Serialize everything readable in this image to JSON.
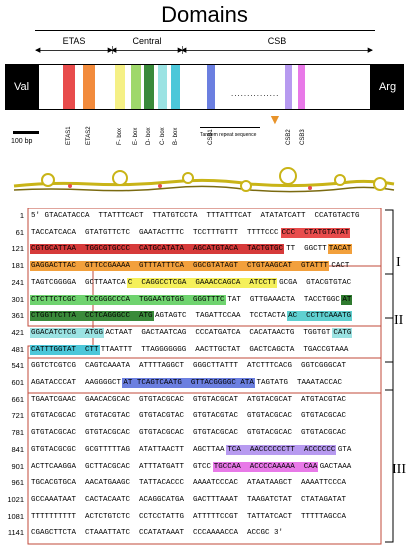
{
  "title": "Domains",
  "domains": {
    "etas": "ETAS",
    "central": "Central",
    "csb": "CSB"
  },
  "bar": {
    "left_label": "Val",
    "right_label": "Arg",
    "dots": "...............",
    "band_labels": [
      "ETAS1",
      "ETAS2",
      "F- box",
      "E- box",
      "D- box",
      "C- box",
      "B- box",
      "CSB1",
      "CSB2",
      "CSB3"
    ],
    "tandem": "Tandem repeat sequence",
    "colors": {
      "etas1": "#e84c4c",
      "etas2": "#f28b3c",
      "f": "#f5f086",
      "e": "#9fd86b",
      "d": "#3a8a3a",
      "c": "#9be3e3",
      "b": "#4cc7d9",
      "csb1": "#6b7fe0",
      "csb2": "#b79af0",
      "csb3": "#e879e8"
    }
  },
  "scale": "100 bp",
  "region_labels": [
    "I",
    "II",
    "III"
  ],
  "seq_rows": [
    {
      "n": "1",
      "segs": [
        {
          "t": "5' GTACATACCA  TTATTTCACT  TTATGTCCTA  TTTATTTCAT  ATATATCATT  CCATGTACTG",
          "c": ""
        }
      ]
    },
    {
      "n": "61",
      "segs": [
        {
          "t": "TACCATCACA  GTATGTTCTC  GAATACTTTC  TCCTTTGTTT  TTTTCCC",
          "c": ""
        },
        {
          "t": "CCC  CTATGTATAT",
          "c": "#e84c4c"
        }
      ]
    },
    {
      "n": "121",
      "segs": [
        {
          "t": "CGTGCATTAA  TGGCGTGCCC  CATGCATATA  AGCATGTACA  TACTGTGC",
          "c": "#d63a3a"
        },
        {
          "t": "TT  GGCTT",
          "c": ""
        },
        {
          "t": "TACAT",
          "c": "#f2a03c"
        }
      ]
    },
    {
      "n": "181",
      "segs": [
        {
          "t": "GAGGACTTAC  GTTCCGAAAA  GTTTATTTCA  GGCGTATAGT  CTGTAAGCAT  GTATTT",
          "c": "#f2a03c"
        },
        {
          "t": "CACT",
          "c": ""
        }
      ]
    },
    {
      "n": "241",
      "segs": [
        {
          "t": "TAGTCGGGGA  GCTTAATCA",
          "c": ""
        },
        {
          "t": "C  CAGGCCTCGA  GAAACCAGCA  ATCCTT",
          "c": "#f5f05a"
        },
        {
          "t": "GCGA  GTACGTGTAC",
          "c": ""
        }
      ]
    },
    {
      "n": "301",
      "segs": [
        {
          "t": "CTCTTCTCGC  TCCGGGCCCA  TGGAATGTGG  GGGTTTC",
          "c": "#6fd36f"
        },
        {
          "t": "TAT  GTTGAAACTA  TACCTGGC",
          "c": ""
        },
        {
          "t": "AT",
          "c": "#2f7a2f"
        }
      ]
    },
    {
      "n": "361",
      "segs": [
        {
          "t": "CTGGTTCTTA  CCTCAGGGCC  ATG",
          "c": "#3a8a3a"
        },
        {
          "t": "AGTAGTC  TAGATTCCAA  TCCTACTA",
          "c": ""
        },
        {
          "t": "AC  CCTTCAAATG",
          "c": "#5fd0d0"
        }
      ]
    },
    {
      "n": "421",
      "segs": [
        {
          "t": "GGACATCTCG  ATGG",
          "c": "#9be3e3"
        },
        {
          "t": "ACTAAT  GACTAATCAG  CCCATGATCA  CACATAACTG  TGGTGT",
          "c": ""
        },
        {
          "t": "CATG",
          "c": "#9be3e3"
        }
      ]
    },
    {
      "n": "481",
      "segs": [
        {
          "t": "CATTTGGTAT  CTT",
          "c": "#4cc7d9"
        },
        {
          "t": "TTAATTT  TTAGGGGGGG  AACTTGCTAT  GACTCAGCTA  TGACCGTAAA",
          "c": ""
        }
      ]
    },
    {
      "n": "541",
      "segs": [
        {
          "t": "GGTCTCGTCG  CAGTCAAATA  ATTTTAGGCT  GGGCTTATTT  ATCTTTCACG  GGTCGGGCAT",
          "c": ""
        }
      ]
    },
    {
      "n": "601",
      "segs": [
        {
          "t": "AGATACCCAT  AAGGGGCT",
          "c": ""
        },
        {
          "t": "AT TCAGTCAATG  GTTACGGGGC ATA",
          "c": "#6b7fe0"
        },
        {
          "t": "TAGTATG  TAAATACCAC",
          "c": ""
        }
      ]
    },
    {
      "n": "661",
      "segs": [
        {
          "t": "TGAATCGAAC  GAACACGCAC  GTGTACGCAC  GTGTACGCAT  ATGTACGCAT  ATGTACGTAC",
          "c": ""
        }
      ]
    },
    {
      "n": "721",
      "segs": [
        {
          "t": "GTGTACGCAC  GTGTACGTAC  GTGTACGTAC  GTGTACGTAC  GTGTACGCAC  GTGTACGCAC",
          "c": ""
        }
      ]
    },
    {
      "n": "781",
      "segs": [
        {
          "t": "GTGTACGCAC  GTGTACGCAC  GTGTACGCAC  GTGTACGCAC  GTGTACGCAC  GTGTACGCAC",
          "c": ""
        }
      ]
    },
    {
      "n": "841",
      "segs": [
        {
          "t": "GTGTACGCGC  GCGTTTTTAG  ATATTAACTT  AGCTTAA",
          "c": ""
        },
        {
          "t": "TCA  AACCCCCCTT  ACCCCCC",
          "c": "#b79af0"
        },
        {
          "t": "GTA",
          "c": ""
        }
      ]
    },
    {
      "n": "901",
      "segs": [
        {
          "t": "ACTTCAAGGA  GCTTACGCAC  ATTTATGATT  GTCC",
          "c": ""
        },
        {
          "t": "TGCCAA  ACCCCAAAAA  CAA",
          "c": "#e879e8"
        },
        {
          "t": "GACTAAA",
          "c": ""
        }
      ]
    },
    {
      "n": "961",
      "segs": [
        {
          "t": "TGCACGTGCA  AACATGAAGC  TATTACACCC  AAAATCCCAC  ATAATAAGCT  AAAATTCCCA",
          "c": ""
        }
      ]
    },
    {
      "n": "1021",
      "segs": [
        {
          "t": "GCCAAATAAT  CACTACAATC  ACAGGCATGA  GACTTTAAAT  TAAGATCTAT  CTATAGATAT",
          "c": ""
        }
      ]
    },
    {
      "n": "1081",
      "segs": [
        {
          "t": "TTTTTTTTTT  ACTCTGTCTC  CCTCCTATTG  ATTTTTCCGT  TATTATCACT  TTTTTAGCCA",
          "c": ""
        }
      ]
    },
    {
      "n": "1141",
      "segs": [
        {
          "t": "CGAGCTTCTA  CTAAATTATC  CCATATAAAT  CCCAAAACCA  ACCGC 3'",
          "c": ""
        }
      ]
    }
  ]
}
